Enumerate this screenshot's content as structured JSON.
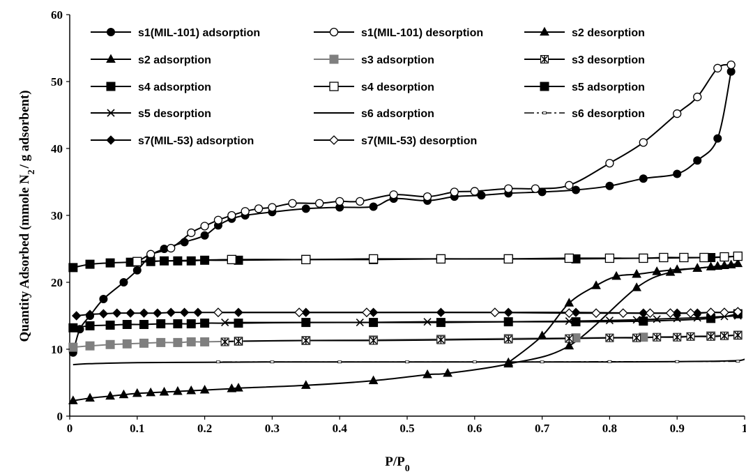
{
  "chart_data": {
    "type": "line",
    "xlabel": "P/P",
    "xlabel_sub": "0",
    "ylabel": "Quantity Adsorbed (mmole N",
    "ylabel_sub": "2",
    "ylabel_tail": "/ g adsorbent)",
    "xlim": [
      0,
      1
    ],
    "ylim": [
      0,
      60
    ],
    "x_ticks": [
      "0",
      "0.1",
      "0.2",
      "0.3",
      "0.4",
      "0.5",
      "0.6",
      "0.7",
      "0.8",
      "0.9",
      "1"
    ],
    "y_ticks": [
      "0",
      "10",
      "20",
      "30",
      "40",
      "50",
      "60"
    ],
    "grid": false,
    "legend_position": "top-left",
    "series": [
      {
        "name": "s1(MIL-101) adsorption",
        "marker": "circle-filled",
        "color": "#000000",
        "x": [
          0.005,
          0.015,
          0.03,
          0.05,
          0.08,
          0.1,
          0.12,
          0.14,
          0.17,
          0.2,
          0.22,
          0.24,
          0.26,
          0.3,
          0.35,
          0.4,
          0.45,
          0.48,
          0.53,
          0.57,
          0.61,
          0.65,
          0.7,
          0.75,
          0.8,
          0.85,
          0.9,
          0.93,
          0.96,
          0.98
        ],
        "y": [
          9.5,
          13.0,
          15.0,
          17.5,
          20.0,
          21.8,
          24.0,
          25.0,
          26.0,
          27.0,
          28.5,
          29.5,
          30.0,
          30.5,
          31.0,
          31.2,
          31.3,
          32.5,
          32.2,
          32.8,
          33.0,
          33.3,
          33.5,
          33.8,
          34.4,
          35.5,
          36.2,
          38.2,
          41.5,
          51.5
        ]
      },
      {
        "name": "s1(MIL-101) desorption",
        "marker": "circle-open",
        "color": "#000000",
        "x": [
          0.98,
          0.96,
          0.93,
          0.9,
          0.85,
          0.8,
          0.74,
          0.69,
          0.65,
          0.6,
          0.57,
          0.53,
          0.48,
          0.43,
          0.4,
          0.37,
          0.33,
          0.3,
          0.28,
          0.26,
          0.24,
          0.22,
          0.2,
          0.18,
          0.15,
          0.12,
          0.1
        ],
        "y": [
          52.5,
          52.0,
          47.7,
          45.2,
          40.9,
          37.8,
          34.5,
          34.0,
          34.0,
          33.6,
          33.5,
          32.8,
          33.1,
          32.1,
          32.1,
          31.8,
          31.8,
          31.2,
          31.0,
          30.6,
          30.0,
          29.3,
          28.4,
          27.4,
          25.1,
          24.2,
          23.0
        ]
      },
      {
        "name": "s2 desorption",
        "marker": "triangle",
        "color": "#000000",
        "x": [
          0.99,
          0.97,
          0.95,
          0.93,
          0.9,
          0.87,
          0.84,
          0.81,
          0.78,
          0.74,
          0.7,
          0.65
        ],
        "y": [
          22.8,
          22.5,
          22.3,
          22.1,
          21.9,
          21.6,
          21.2,
          20.9,
          19.5,
          16.9,
          12.0,
          8.0
        ]
      },
      {
        "name": "s2 adsorption",
        "marker": "triangle",
        "color": "#000000",
        "x": [
          0.005,
          0.03,
          0.06,
          0.08,
          0.1,
          0.12,
          0.14,
          0.16,
          0.18,
          0.2,
          0.24,
          0.25,
          0.35,
          0.45,
          0.53,
          0.56,
          0.65,
          0.74,
          0.84,
          0.89,
          0.93,
          0.96,
          0.98
        ],
        "y": [
          2.3,
          2.7,
          3.0,
          3.2,
          3.4,
          3.5,
          3.6,
          3.7,
          3.8,
          3.9,
          4.1,
          4.2,
          4.6,
          5.3,
          6.2,
          6.4,
          7.8,
          10.5,
          19.2,
          21.5,
          22.1,
          22.4,
          22.6
        ]
      },
      {
        "name": "s3 adsorption",
        "marker": "square-filled",
        "color": "#7f7f7f",
        "x": [
          0.005,
          0.03,
          0.06,
          0.085,
          0.11,
          0.135,
          0.16,
          0.18,
          0.2,
          0.25,
          0.35,
          0.45,
          0.55,
          0.65,
          0.75,
          0.85,
          0.95,
          0.99
        ],
        "y": [
          10.3,
          10.5,
          10.7,
          10.8,
          10.9,
          11.0,
          11.0,
          11.1,
          11.1,
          11.2,
          11.3,
          11.4,
          11.5,
          11.6,
          11.7,
          11.8,
          12.0,
          12.1
        ]
      },
      {
        "name": "s3 desorption",
        "marker": "asterisk-box",
        "color": "#000000",
        "x": [
          0.99,
          0.97,
          0.95,
          0.92,
          0.9,
          0.87,
          0.84,
          0.8,
          0.74,
          0.65,
          0.55,
          0.45,
          0.35,
          0.25,
          0.23
        ],
        "y": [
          12.1,
          12.0,
          11.9,
          11.9,
          11.8,
          11.8,
          11.7,
          11.7,
          11.6,
          11.5,
          11.4,
          11.3,
          11.3,
          11.2,
          11.1
        ]
      },
      {
        "name": "s4 adsorption",
        "marker": "square-filled",
        "color": "#000000",
        "x": [
          0.005,
          0.03,
          0.06,
          0.09,
          0.12,
          0.14,
          0.16,
          0.18,
          0.2,
          0.25,
          0.35,
          0.45,
          0.55,
          0.65,
          0.75,
          0.85,
          0.95,
          0.99
        ],
        "y": [
          22.2,
          22.7,
          22.9,
          23.0,
          23.1,
          23.2,
          23.2,
          23.2,
          23.3,
          23.3,
          23.4,
          23.4,
          23.5,
          23.5,
          23.5,
          23.6,
          23.7,
          23.9
        ]
      },
      {
        "name": "s4 desorption",
        "marker": "square-open",
        "color": "#000000",
        "x": [
          0.99,
          0.97,
          0.94,
          0.91,
          0.88,
          0.85,
          0.8,
          0.74,
          0.65,
          0.55,
          0.45,
          0.35,
          0.24,
          0.1
        ],
        "y": [
          23.9,
          23.8,
          23.7,
          23.7,
          23.7,
          23.6,
          23.6,
          23.6,
          23.5,
          23.5,
          23.5,
          23.4,
          23.4,
          23.1
        ]
      },
      {
        "name": "s5 adsorption",
        "marker": "square-filled",
        "color": "#000000",
        "x": [
          0.005,
          0.03,
          0.06,
          0.085,
          0.11,
          0.135,
          0.16,
          0.18,
          0.2,
          0.25,
          0.35,
          0.45,
          0.55,
          0.65,
          0.75,
          0.85,
          0.95,
          0.99
        ],
        "y": [
          13.2,
          13.5,
          13.6,
          13.7,
          13.7,
          13.8,
          13.8,
          13.8,
          13.9,
          13.9,
          14.0,
          14.0,
          14.0,
          14.1,
          14.1,
          14.2,
          14.6,
          15.3
        ]
      },
      {
        "name": "s5 desorption",
        "marker": "x",
        "color": "#000000",
        "x": [
          0.99,
          0.97,
          0.95,
          0.93,
          0.9,
          0.87,
          0.84,
          0.8,
          0.74,
          0.65,
          0.53,
          0.43,
          0.35,
          0.23
        ],
        "y": [
          15.0,
          14.9,
          14.8,
          14.7,
          14.6,
          14.5,
          14.4,
          14.3,
          14.2,
          14.1,
          14.1,
          14.0,
          14.0,
          14.0
        ]
      },
      {
        "name": "s6 adsorption",
        "marker": "none",
        "color": "#000000",
        "x": [
          0.005,
          0.02,
          0.05,
          0.1,
          0.2,
          0.3,
          0.4,
          0.5,
          0.6,
          0.7,
          0.8,
          0.9,
          0.95,
          0.99,
          1.0
        ],
        "y": [
          7.7,
          7.8,
          7.9,
          8.0,
          8.05,
          8.1,
          8.1,
          8.1,
          8.1,
          8.1,
          8.1,
          8.15,
          8.2,
          8.3,
          8.5
        ]
      },
      {
        "name": "s6 desorption",
        "marker": "dash",
        "color": "#000000",
        "x": [
          0.99,
          0.9,
          0.8,
          0.7,
          0.6,
          0.5,
          0.4,
          0.3,
          0.22
        ],
        "y": [
          8.2,
          8.15,
          8.15,
          8.1,
          8.1,
          8.1,
          8.1,
          8.1,
          8.1
        ]
      },
      {
        "name": "s7(MIL-53) adsorption",
        "marker": "diamond-filled",
        "color": "#000000",
        "x": [
          0.01,
          0.03,
          0.05,
          0.07,
          0.09,
          0.11,
          0.13,
          0.15,
          0.17,
          0.19,
          0.25,
          0.35,
          0.45,
          0.55,
          0.65,
          0.75,
          0.85,
          0.9,
          0.93,
          0.95,
          0.97,
          0.99
        ],
        "y": [
          15.0,
          15.2,
          15.3,
          15.4,
          15.4,
          15.4,
          15.4,
          15.5,
          15.5,
          15.5,
          15.5,
          15.5,
          15.5,
          15.5,
          15.5,
          15.5,
          15.4,
          15.4,
          15.4,
          15.5,
          15.5,
          15.6
        ]
      },
      {
        "name": "s7(MIL-53) desorption",
        "marker": "diamond-open",
        "color": "#000000",
        "x": [
          0.99,
          0.97,
          0.95,
          0.92,
          0.89,
          0.86,
          0.82,
          0.78,
          0.74,
          0.63,
          0.44,
          0.34,
          0.22
        ],
        "y": [
          15.6,
          15.5,
          15.5,
          15.4,
          15.4,
          15.4,
          15.4,
          15.4,
          15.4,
          15.5,
          15.5,
          15.5,
          15.5
        ]
      }
    ]
  }
}
